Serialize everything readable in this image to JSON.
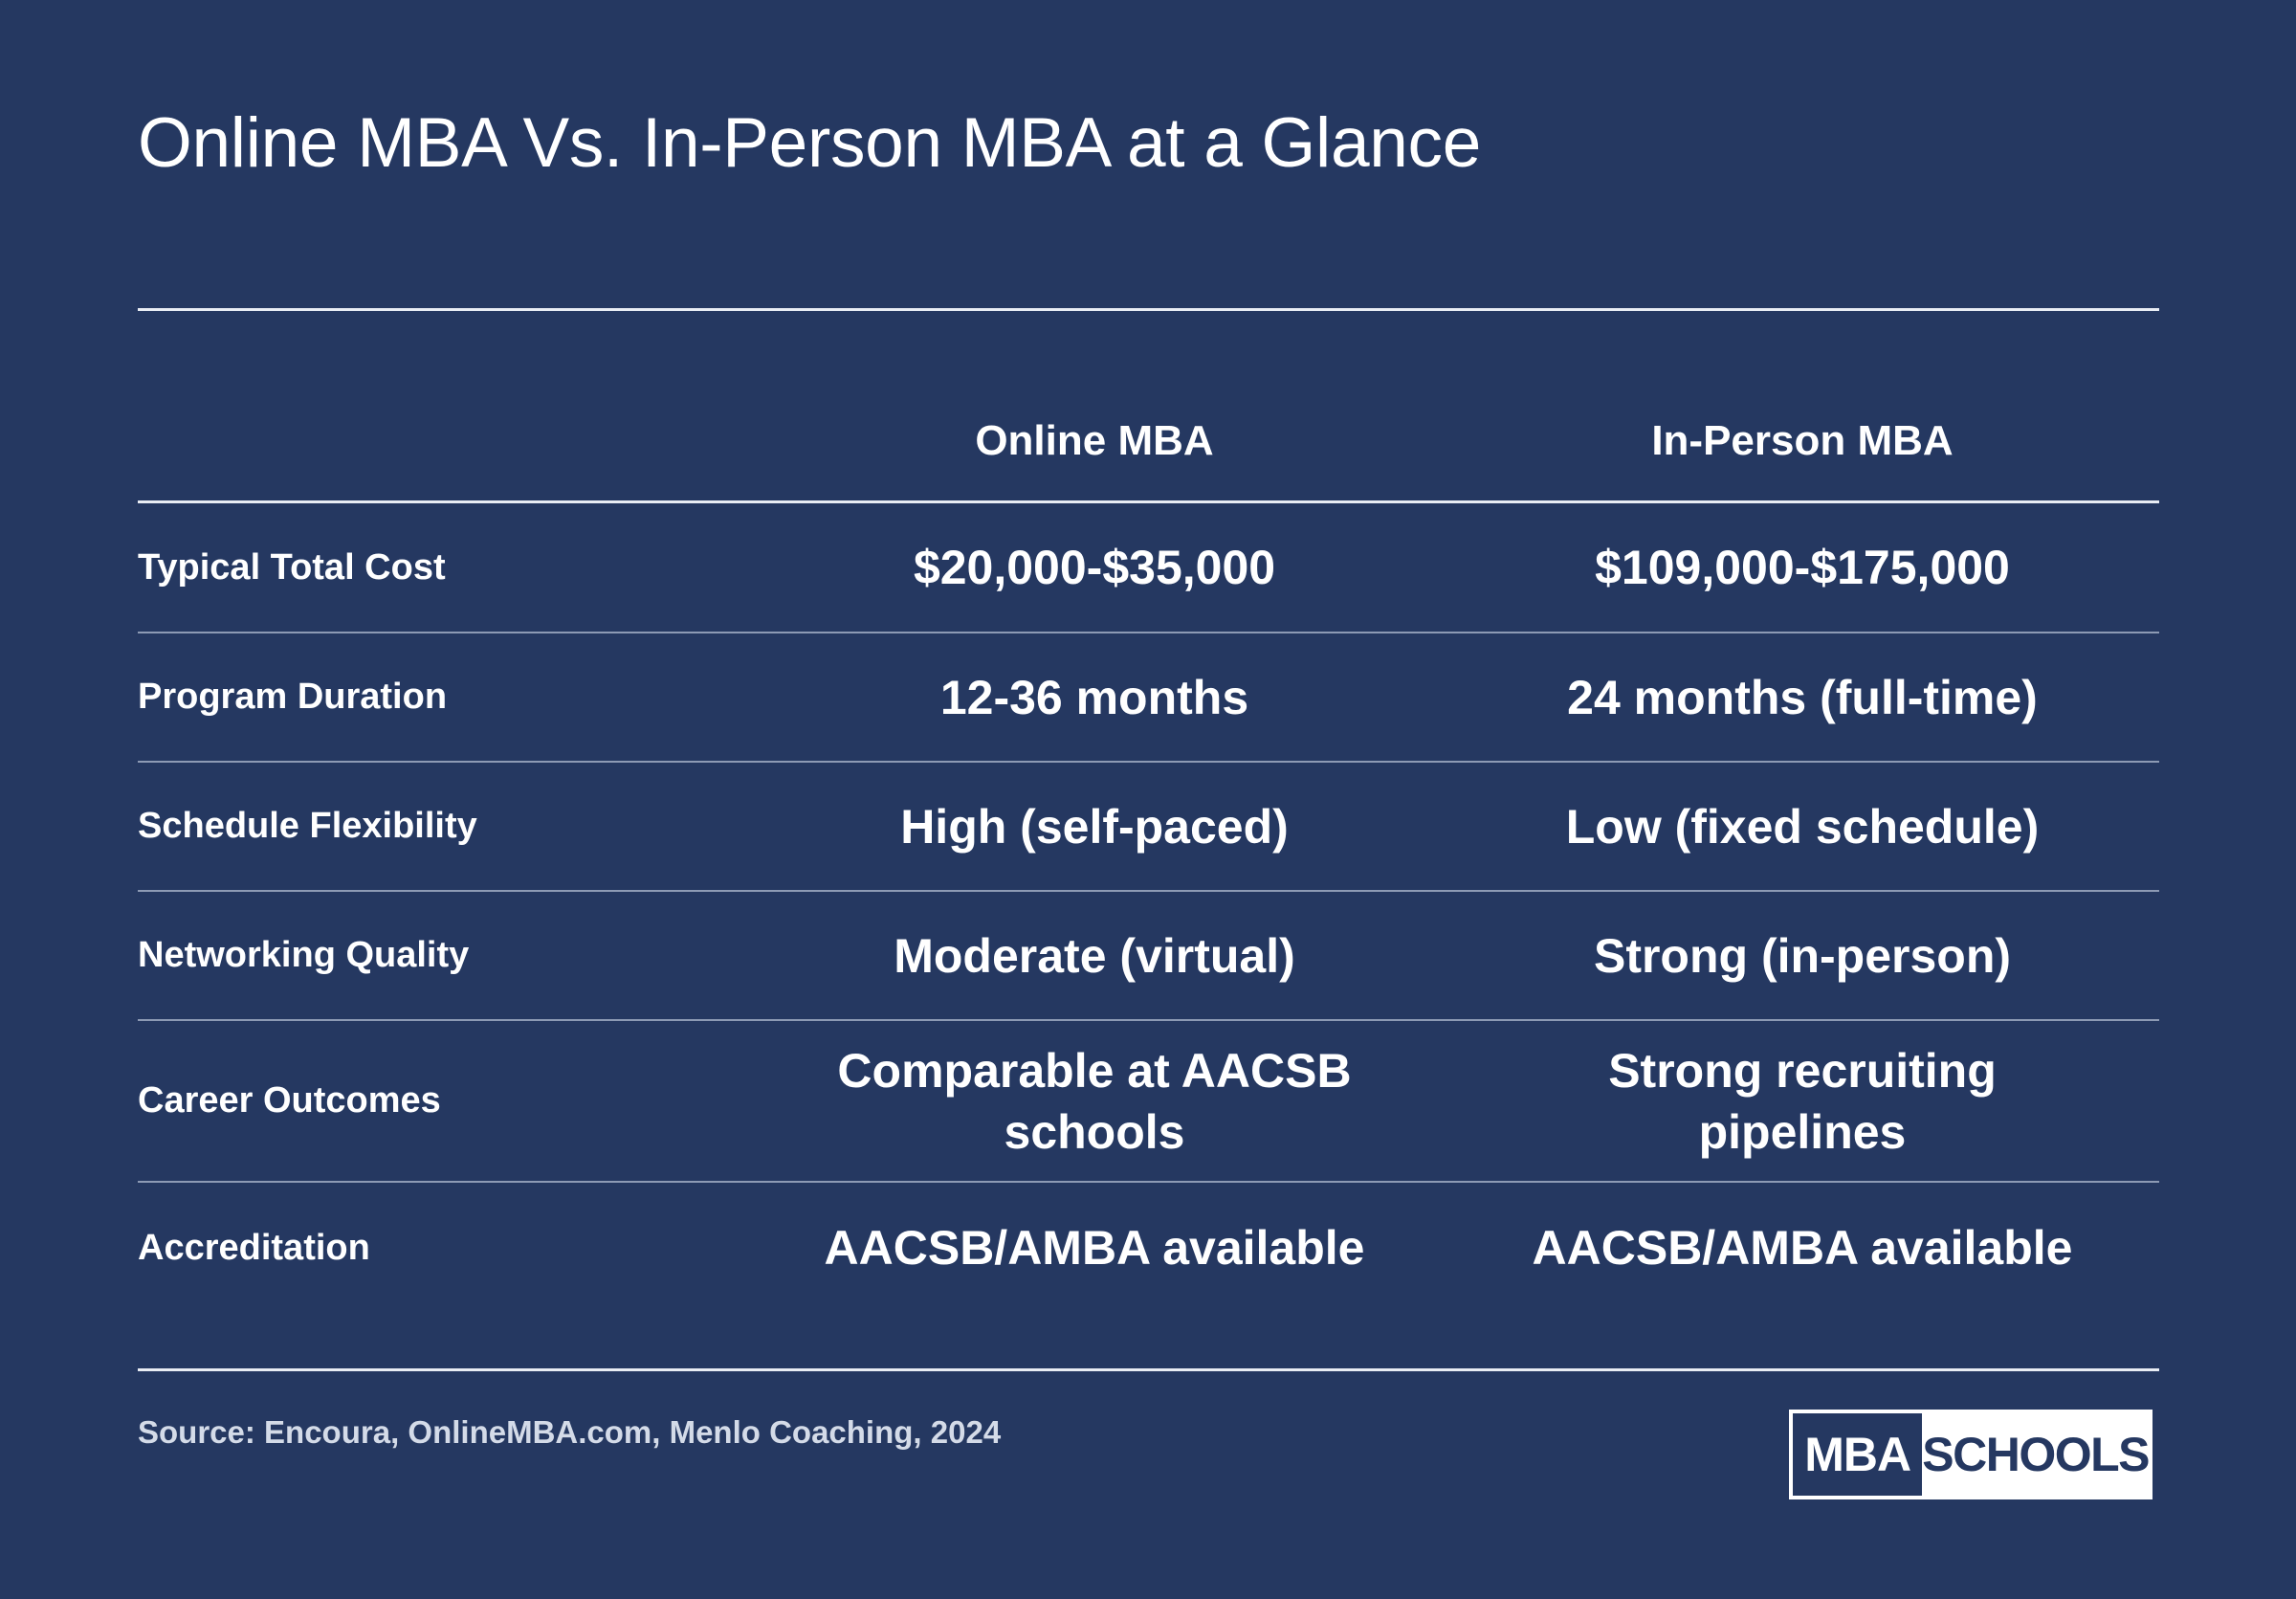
{
  "title": "Online MBA Vs. In-Person MBA at a Glance",
  "table": {
    "columns": [
      "Online MBA",
      "In-Person MBA"
    ],
    "rows": [
      {
        "label": "Typical Total Cost",
        "online": "$20,000-$35,000",
        "in_person": "$109,000-$175,000"
      },
      {
        "label": "Program Duration",
        "online": "12-36 months",
        "in_person": "24 months (full-time)"
      },
      {
        "label": "Schedule Flexibility",
        "online": "High (self-paced)",
        "in_person": "Low (fixed schedule)"
      },
      {
        "label": "Networking Quality",
        "online": "Moderate (virtual)",
        "in_person": "Strong (in-person)"
      },
      {
        "label": "Career Outcomes",
        "online": "Comparable at AACSB schools",
        "in_person": "Strong recruiting pipelines"
      },
      {
        "label": "Accreditation",
        "online": "AACSB/AMBA available",
        "in_person": "AACSB/AMBA available"
      }
    ]
  },
  "source": "Source: Encoura, OnlineMBA.com, Menlo Coaching, 2024",
  "logo": {
    "left": "MBA",
    "right": "SCHOOLS"
  },
  "colors": {
    "background": "#253861",
    "text": "#ffffff",
    "logo_background": "#ffffff"
  }
}
